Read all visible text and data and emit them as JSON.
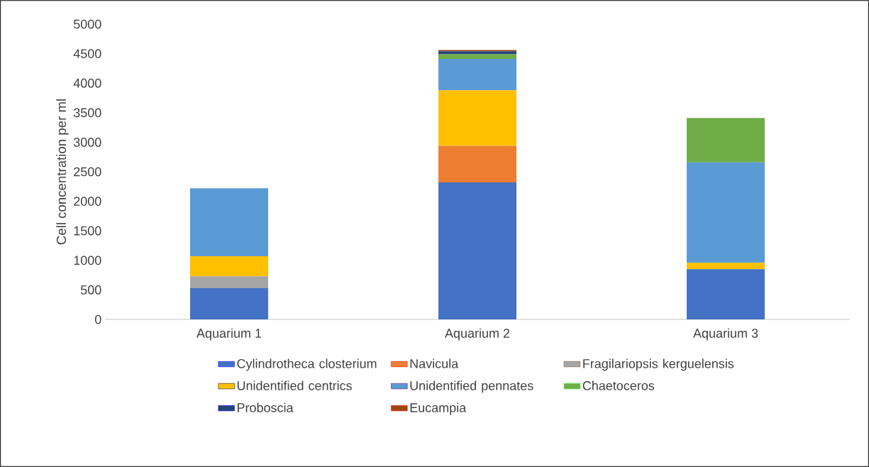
{
  "chart_data": {
    "type": "bar",
    "stacked": true,
    "ylabel": "Cell concentration per ml",
    "categories": [
      "Aquarium 1",
      "Aquarium 2",
      "Aquarium 3"
    ],
    "ylim": [
      0,
      5000
    ],
    "yticks": [
      0,
      500,
      1000,
      1500,
      2000,
      2500,
      3000,
      3500,
      4000,
      4500,
      5000
    ],
    "legend": "bottom",
    "series": [
      {
        "name": "Cylindrotheca closterium",
        "color": "#4472c4",
        "values": [
          530,
          2320,
          850
        ]
      },
      {
        "name": "Navicula",
        "color": "#ed7d31",
        "values": [
          0,
          620,
          0
        ]
      },
      {
        "name": "Fragilariopsis kerguelensis",
        "color": "#a5a5a5",
        "values": [
          200,
          0,
          0
        ]
      },
      {
        "name": "Unidentified centrics",
        "color": "#ffc000",
        "values": [
          340,
          940,
          110
        ]
      },
      {
        "name": "Unidentified pennates",
        "color": "#5b9bd5",
        "values": [
          1150,
          530,
          1700
        ]
      },
      {
        "name": "Chaetoceros",
        "color": "#70ad47",
        "values": [
          0,
          80,
          750
        ]
      },
      {
        "name": "Proboscia",
        "color": "#264478",
        "values": [
          0,
          50,
          0
        ]
      },
      {
        "name": "Eucampia",
        "color": "#9e480e",
        "values": [
          0,
          20,
          0
        ]
      }
    ]
  }
}
